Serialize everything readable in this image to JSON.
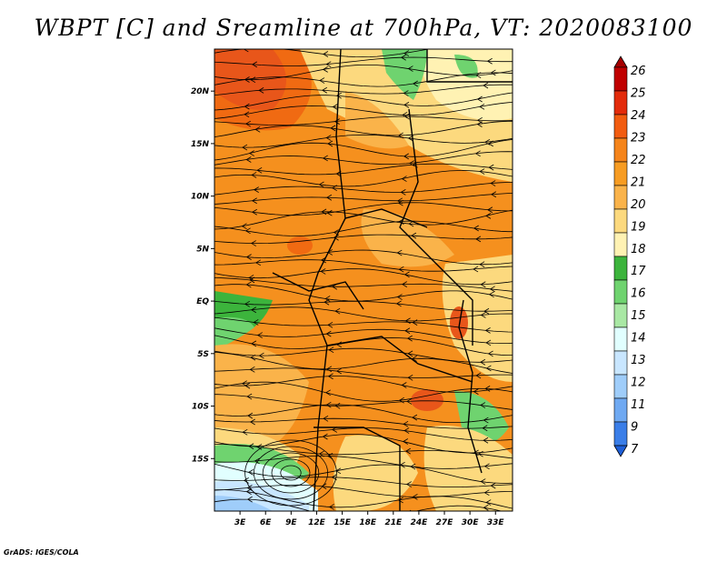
{
  "title": "WBPT [C] and Sreamline at 700hPa, VT: 2020083100",
  "credit": "GrADS: IGES/COLA",
  "map": {
    "lon_range": [
      0,
      35
    ],
    "lat_range": [
      -20,
      24
    ],
    "lon_ticks": [
      "3E",
      "6E",
      "9E",
      "12E",
      "15E",
      "18E",
      "21E",
      "24E",
      "27E",
      "30E",
      "33E"
    ],
    "lat_ticks": [
      "20N",
      "15N",
      "10N",
      "5N",
      "EQ",
      "5S",
      "10S",
      "15S"
    ]
  },
  "colorbar": {
    "labels": [
      "26",
      "25",
      "24",
      "23",
      "22",
      "21",
      "20",
      "19",
      "18",
      "17",
      "16",
      "15",
      "14",
      "13",
      "12",
      "11",
      "9",
      "7"
    ],
    "colors": [
      "#a50000",
      "#c00000",
      "#e32b0b",
      "#f25c10",
      "#f5841a",
      "#f79c22",
      "#fab34a",
      "#fcd97e",
      "#fff2b3",
      "#3cb43c",
      "#6fd36f",
      "#a9e8a4",
      "#e1ffff",
      "#c8e6ff",
      "#9fcdfa",
      "#6fa9f2",
      "#3a7ee8",
      "#1e5fd8"
    ]
  }
}
